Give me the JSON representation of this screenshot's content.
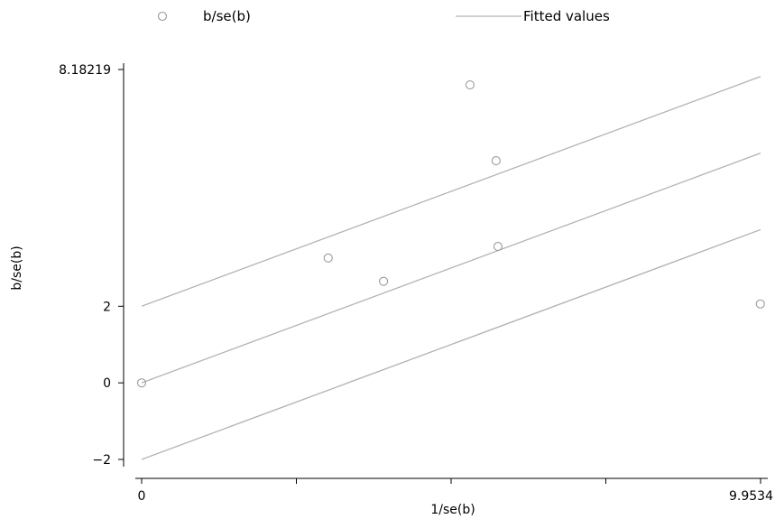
{
  "chart_data": {
    "type": "scatter",
    "xlabel": "1/se(b)",
    "ylabel": "b/se(b)",
    "xlim": [
      0,
      9.9534
    ],
    "ylim": [
      -2,
      8.18219
    ],
    "x_ticks": [
      0,
      2.48835,
      4.9767,
      7.46505,
      9.9534
    ],
    "x_tick_labels": [
      "0",
      "",
      "",
      "",
      "9.9534"
    ],
    "y_ticks": [
      -2,
      0,
      2,
      8.18219
    ],
    "y_tick_labels": [
      "−2",
      "0",
      "2",
      "8.18219"
    ],
    "legend": [
      {
        "label": "b/se(b)",
        "marker": "hollow-circle",
        "color": "#9a9a9a"
      },
      {
        "label": "Fitted values",
        "marker": "line",
        "color": "#b3b3b3"
      }
    ],
    "series": [
      {
        "name": "b/se(b)",
        "kind": "scatter",
        "color": "#9a9a9a",
        "points": [
          {
            "x": 0,
            "y": 0
          },
          {
            "x": 3.0,
            "y": 3.26
          },
          {
            "x": 3.89,
            "y": 2.65
          },
          {
            "x": 5.28,
            "y": 7.78
          },
          {
            "x": 5.7,
            "y": 5.8
          },
          {
            "x": 5.73,
            "y": 3.56
          },
          {
            "x": 9.95,
            "y": 2.06
          }
        ]
      },
      {
        "name": "Fitted values",
        "kind": "line",
        "color": "#b3b3b3",
        "lines": [
          {
            "x": [
              0,
              9.9534
            ],
            "y": [
              2,
              8.0
            ]
          },
          {
            "x": [
              0,
              9.9534
            ],
            "y": [
              0,
              6.0
            ]
          },
          {
            "x": [
              0,
              9.9534
            ],
            "y": [
              -2,
              4.0
            ]
          }
        ]
      }
    ],
    "grid": false,
    "legend_position": "top"
  }
}
